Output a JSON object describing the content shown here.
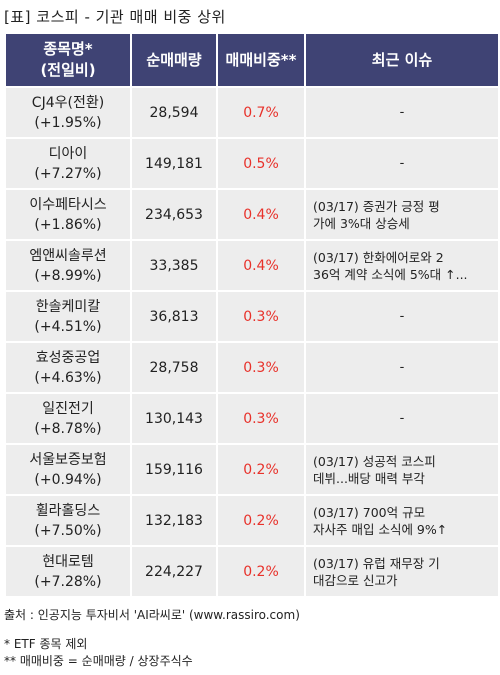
{
  "title": "[표] 코스피 - 기관 매매 비중 상위",
  "headers": {
    "name_line1": "종목명*",
    "name_line2": "(전일비)",
    "net_volume": "순매매량",
    "ratio": "매매비중**",
    "issue": "최근 이슈"
  },
  "rows": [
    {
      "name": "CJ4우(전환)",
      "change": "(+1.95%)",
      "net_volume": "28,594",
      "ratio": "0.7%",
      "issue_line1": "-",
      "issue_line2": ""
    },
    {
      "name": "디아이",
      "change": "(+7.27%)",
      "net_volume": "149,181",
      "ratio": "0.5%",
      "issue_line1": "-",
      "issue_line2": ""
    },
    {
      "name": "이수페타시스",
      "change": "(+1.86%)",
      "net_volume": "234,653",
      "ratio": "0.4%",
      "issue_line1": "(03/17) 증권가 긍정 평",
      "issue_line2": "가에 3%대 상승세"
    },
    {
      "name": "엠앤씨솔루션",
      "change": "(+8.99%)",
      "net_volume": "33,385",
      "ratio": "0.4%",
      "issue_line1": "(03/17) 한화에어로와 2",
      "issue_line2": "36억 계약 소식에 5%대 ↑..."
    },
    {
      "name": "한솔케미칼",
      "change": "(+4.51%)",
      "net_volume": "36,813",
      "ratio": "0.3%",
      "issue_line1": "-",
      "issue_line2": ""
    },
    {
      "name": "효성중공업",
      "change": "(+4.63%)",
      "net_volume": "28,758",
      "ratio": "0.3%",
      "issue_line1": "-",
      "issue_line2": ""
    },
    {
      "name": "일진전기",
      "change": "(+8.78%)",
      "net_volume": "130,143",
      "ratio": "0.3%",
      "issue_line1": "-",
      "issue_line2": ""
    },
    {
      "name": "서울보증보험",
      "change": "(+0.94%)",
      "net_volume": "159,116",
      "ratio": "0.2%",
      "issue_line1": "(03/17) 성공적 코스피",
      "issue_line2": "데뷔...배당 매력 부각"
    },
    {
      "name": "휠라홀딩스",
      "change": "(+7.50%)",
      "net_volume": "132,183",
      "ratio": "0.2%",
      "issue_line1": "(03/17) 700억 규모",
      "issue_line2": "자사주 매입 소식에 9%↑"
    },
    {
      "name": "현대로템",
      "change": "(+7.28%)",
      "net_volume": "224,227",
      "ratio": "0.2%",
      "issue_line1": "(03/17) 유럽 재무장 기",
      "issue_line2": "대감으로 신고가"
    }
  ],
  "footer": {
    "source": "출처 : 인공지능 투자비서 'AI라씨로' (www.rassiro.com)",
    "note1": "* ETF 종목 제외",
    "note2": "** 매매비중 = 순매매량 / 상장주식수"
  },
  "colors": {
    "header_bg": "#3f4374",
    "cell_bg": "#ededed",
    "ratio_text": "#e8322b"
  }
}
